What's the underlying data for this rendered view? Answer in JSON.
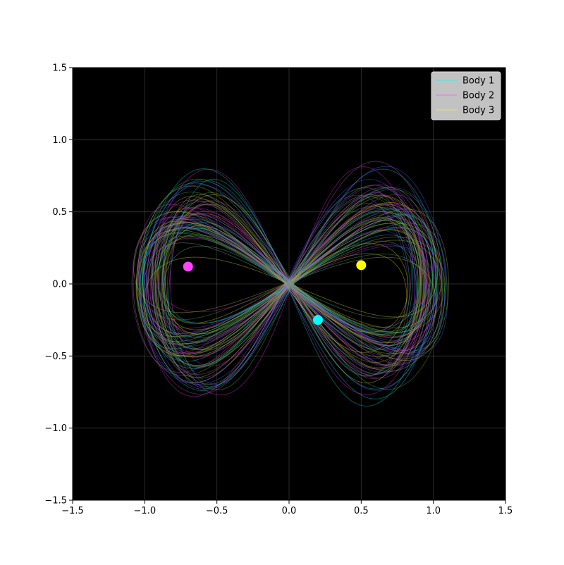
{
  "chart_data": {
    "type": "line",
    "title": "",
    "xlabel": "",
    "ylabel": "",
    "xlim": [
      -1.5,
      1.5
    ],
    "ylim": [
      -1.5,
      1.5
    ],
    "grid": true,
    "background": "#000000",
    "legend_placement": "top-right",
    "xticks": [
      -1.5,
      -1.0,
      -0.5,
      0.0,
      0.5,
      1.0,
      1.5
    ],
    "yticks": [
      -1.5,
      -1.0,
      -0.5,
      0.0,
      0.5,
      1.0,
      1.5
    ],
    "xtick_labels": [
      "−1.5",
      "−1.0",
      "−0.5",
      "0.0",
      "0.5",
      "1.0",
      "1.5"
    ],
    "ytick_labels": [
      "−1.5",
      "−1.0",
      "−0.5",
      "0.0",
      "0.5",
      "1.0",
      "1.5"
    ],
    "series": [
      {
        "name": "Body 1",
        "color": "#00ffff",
        "marker": {
          "x": 0.2,
          "y": -0.25
        }
      },
      {
        "name": "Body 2",
        "color": "#ff44ff",
        "marker": {
          "x": -0.7,
          "y": 0.12
        }
      },
      {
        "name": "Body 3",
        "color": "#ffff00",
        "marker": {
          "x": 0.5,
          "y": 0.13
        }
      }
    ],
    "trail_colors": [
      "#00cccc",
      "#dd22dd",
      "#cccc00",
      "#5555ff",
      "#44aa44",
      "#aa55aa",
      "#66aa88",
      "#aaaa44"
    ]
  }
}
